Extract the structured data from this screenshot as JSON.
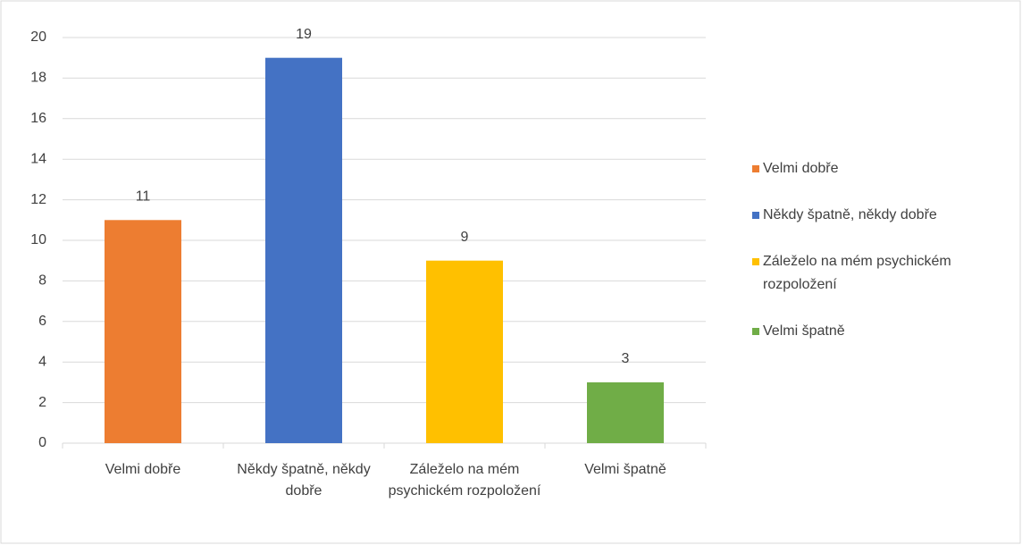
{
  "chart_data": {
    "type": "bar",
    "categories": [
      "Velmi dobře",
      "Někdy špatně, někdy dobře",
      "Záleželo na mém psychickém rozpoložení",
      "Velmi špatně"
    ],
    "values": [
      11,
      19,
      9,
      3
    ],
    "colors": [
      "#ed7d31",
      "#4472c4",
      "#ffc000",
      "#70ad47"
    ],
    "ylim": [
      0,
      20
    ],
    "yticks": [
      0,
      2,
      4,
      6,
      8,
      10,
      12,
      14,
      16,
      18,
      20
    ],
    "grid": true,
    "legend": "right"
  }
}
